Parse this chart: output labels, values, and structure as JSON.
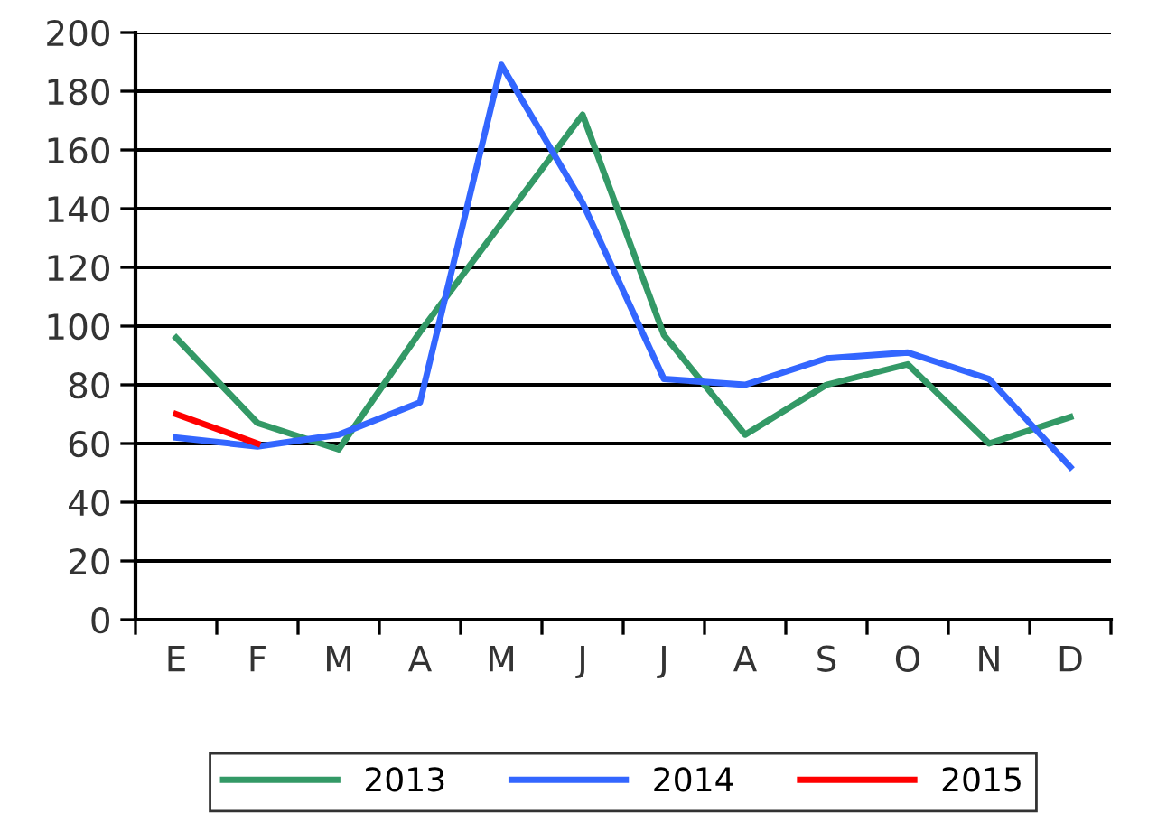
{
  "chart_data": {
    "type": "line",
    "categories": [
      "E",
      "F",
      "M",
      "A",
      "M",
      "J",
      "J",
      "A",
      "S",
      "O",
      "N",
      "D"
    ],
    "series": [
      {
        "name": "2013",
        "color": "#339966",
        "values": [
          96,
          67,
          58,
          98,
          135,
          172,
          97,
          63,
          80,
          87,
          60,
          69
        ]
      },
      {
        "name": "2014",
        "color": "#3366ff",
        "values": [
          62,
          59,
          63,
          74,
          189,
          142,
          82,
          80,
          89,
          91,
          82,
          52
        ]
      },
      {
        "name": "2015",
        "color": "#ff0000",
        "values": [
          70,
          60,
          null,
          null,
          null,
          null,
          null,
          null,
          null,
          null,
          null,
          null
        ]
      }
    ],
    "ylim": [
      0,
      200
    ],
    "yticks": [
      0,
      20,
      40,
      60,
      80,
      100,
      120,
      140,
      160,
      180,
      200
    ],
    "grid": "y",
    "legend": "bottom",
    "marker": "none",
    "line_style": "solid"
  }
}
